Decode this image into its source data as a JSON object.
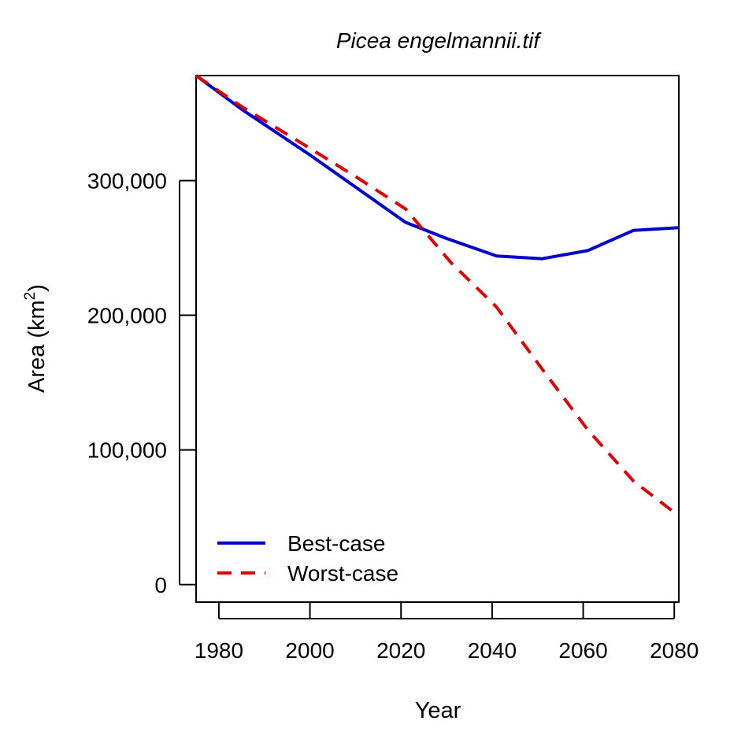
{
  "chart_data": {
    "type": "line",
    "title": "Picea engelmannii.tif",
    "xlabel": "Year",
    "ylabel": {
      "base": "Area (km",
      "superscript": "2",
      "suffix": ")"
    },
    "xlim": [
      1975,
      2081
    ],
    "ylim": [
      -13000,
      378000
    ],
    "xticks": [
      1980,
      2000,
      2020,
      2040,
      2060,
      2080
    ],
    "xtick_labels": [
      "1980",
      "2000",
      "2020",
      "2040",
      "2060",
      "2080"
    ],
    "yticks": [
      0,
      100000,
      200000,
      300000
    ],
    "ytick_labels": [
      "0",
      "100,000",
      "200,000",
      "300,000"
    ],
    "grid": false,
    "legend_position": "bottom-left",
    "series": [
      {
        "name": "Best-case",
        "color": "#0000CD",
        "dash": "solid",
        "x": [
          1975,
          1985,
          2000,
          2021,
          2030,
          2041,
          2051,
          2061,
          2071,
          2081
        ],
        "y": [
          378000,
          353000,
          319000,
          269000,
          257000,
          244000,
          242000,
          248000,
          263000,
          265000
        ]
      },
      {
        "name": "Worst-case",
        "color": "#DD0000",
        "dash": "dashed",
        "x": [
          1975,
          1985,
          2000,
          2010,
          2021,
          2031,
          2041,
          2051,
          2061,
          2071,
          2081
        ],
        "y": [
          378000,
          355000,
          324000,
          303000,
          279000,
          239000,
          206000,
          160000,
          115000,
          77000,
          51000
        ]
      }
    ]
  }
}
